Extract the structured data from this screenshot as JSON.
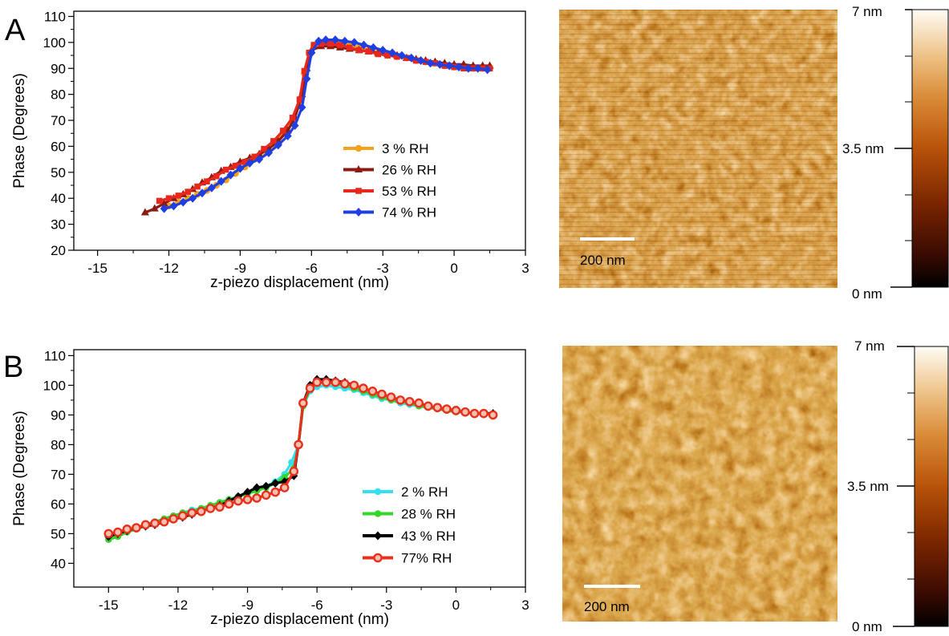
{
  "panels": [
    {
      "letter": "A",
      "chart_data": {
        "type": "line",
        "title": "",
        "xlabel": "z-piezo displacement (nm)",
        "ylabel": "Phase (Degrees)",
        "xlim": [
          -16,
          3
        ],
        "ylim": [
          20,
          112
        ],
        "xticks": [
          -15,
          -12,
          -9,
          -6,
          -3,
          0,
          3
        ],
        "yticks": [
          20,
          30,
          40,
          50,
          60,
          70,
          80,
          90,
          100,
          110
        ],
        "grid": false,
        "legend_position": "center-right",
        "series": [
          {
            "name": "3 % RH",
            "color": "#f7a21b",
            "marker": "circle",
            "x": [
              -12.0,
              -11.6,
              -11.2,
              -10.8,
              -10.4,
              -10.0,
              -9.6,
              -9.2,
              -8.8,
              -8.4,
              -8.0,
              -7.6,
              -7.2,
              -6.8,
              -6.5,
              -6.3,
              -6.1,
              -5.9,
              -5.6,
              -5.2,
              -4.8,
              -4.4,
              -4.0,
              -3.6,
              -3.2,
              -2.8,
              -2.4,
              -2.0,
              -1.6,
              -1.2,
              -0.8,
              -0.4,
              0.0,
              0.4,
              0.8,
              1.2,
              1.5
            ],
            "y": [
              37,
              38.5,
              40,
              41.5,
              43,
              45,
              47,
              49.5,
              52,
              55,
              58,
              61,
              65,
              69,
              76,
              88,
              96,
              99,
              100,
              100,
              99.5,
              99,
              98,
              97,
              96,
              95,
              94.5,
              94,
              93,
              92.5,
              92,
              91,
              90.5,
              90.5,
              90,
              90,
              90
            ]
          },
          {
            "name": "26 % RH",
            "color": "#8b1a12",
            "marker": "triangle",
            "x": [
              -13.0,
              -12.6,
              -12.2,
              -11.8,
              -11.4,
              -11.0,
              -10.6,
              -10.2,
              -9.8,
              -9.4,
              -9.0,
              -8.6,
              -8.2,
              -7.8,
              -7.4,
              -7.0,
              -6.7,
              -6.4,
              -6.2,
              -6.0,
              -5.6,
              -5.2,
              -4.8,
              -4.4,
              -4.0,
              -3.6,
              -3.2,
              -2.8,
              -2.4,
              -2.0,
              -1.6,
              -1.2,
              -0.8,
              -0.4,
              0.0,
              0.4,
              0.8,
              1.2,
              1.5
            ],
            "y": [
              34.5,
              36,
              38,
              40,
              41.5,
              43.5,
              46,
              48,
              50.5,
              52,
              54,
              55.5,
              57,
              59,
              62,
              66,
              71,
              80,
              90,
              97,
              98.5,
              98.5,
              98,
              97.5,
              97,
              96.5,
              96,
              95.5,
              95,
              94,
              93.5,
              93,
              92.5,
              92,
              91.5,
              91.5,
              91,
              91,
              91
            ]
          },
          {
            "name": "53 % RH",
            "color": "#e8281c",
            "marker": "square",
            "x": [
              -12.4,
              -12.0,
              -11.6,
              -11.2,
              -10.8,
              -10.4,
              -10.0,
              -9.6,
              -9.2,
              -8.8,
              -8.4,
              -8.0,
              -7.6,
              -7.2,
              -6.8,
              -6.5,
              -6.3,
              -6.1,
              -5.9,
              -5.6,
              -5.2,
              -4.8,
              -4.4,
              -4.0,
              -3.6,
              -3.2,
              -2.8,
              -2.4,
              -2.0,
              -1.6,
              -1.2,
              -0.8,
              -0.4,
              0.0,
              0.4,
              0.8,
              1.2,
              1.5
            ],
            "y": [
              39,
              40,
              41,
              42.5,
              44.5,
              46.5,
              48.5,
              51,
              52.5,
              54,
              56,
              59,
              62,
              66,
              71,
              78,
              89,
              96,
              99,
              99.5,
              99.5,
              99,
              98,
              97,
              96.5,
              95.5,
              95,
              94.5,
              94,
              93,
              92.5,
              92,
              91,
              90.5,
              90,
              90,
              90,
              90
            ]
          },
          {
            "name": "74 % RH",
            "color": "#1f3fe0",
            "marker": "diamond",
            "x": [
              -12.2,
              -11.8,
              -11.4,
              -11.0,
              -10.6,
              -10.2,
              -9.8,
              -9.4,
              -9.0,
              -8.6,
              -8.2,
              -7.8,
              -7.4,
              -7.0,
              -6.7,
              -6.4,
              -6.2,
              -6.0,
              -5.7,
              -5.4,
              -5.0,
              -4.6,
              -4.2,
              -3.8,
              -3.4,
              -3.0,
              -2.6,
              -2.2,
              -1.8,
              -1.4,
              -1.0,
              -0.6,
              -0.2,
              0.2,
              0.6,
              1.0,
              1.4
            ],
            "y": [
              36,
              37,
              38.5,
              40,
              42,
              44,
              46.5,
              49,
              51.5,
              53.5,
              55,
              57.5,
              60.5,
              64,
              68,
              75,
              86,
              96,
              100.5,
              101,
              101,
              100.5,
              100,
              99,
              98,
              97,
              96,
              95,
              94,
              93,
              92,
              91.5,
              91,
              90.5,
              90,
              90,
              89.5
            ]
          }
        ]
      },
      "image": {
        "scalebar_label": "200 nm",
        "colorbar_labels": [
          "7 nm",
          "3.5 nm",
          "0 nm"
        ],
        "colorbar_range": [
          0,
          7
        ],
        "colormap": [
          "#000000",
          "#3b0b02",
          "#7a2500",
          "#b8520a",
          "#d98a36",
          "#eec48a",
          "#fffcf5"
        ]
      }
    },
    {
      "letter": "B",
      "chart_data": {
        "type": "line",
        "title": "",
        "xlabel": "z-piezo displacement (nm)",
        "ylabel": "Phase (Degrees)",
        "xlim": [
          -16.5,
          3
        ],
        "ylim": [
          32,
          112
        ],
        "xticks": [
          -15,
          -12,
          -9,
          -6,
          -3,
          0,
          3
        ],
        "yticks": [
          40,
          50,
          60,
          70,
          80,
          90,
          100,
          110
        ],
        "grid": false,
        "legend_position": "bottom-right",
        "series": [
          {
            "name": "2 % RH",
            "color": "#33e0f0",
            "marker": "circle",
            "x": [
              -15.0,
              -14.6,
              -14.2,
              -13.8,
              -13.4,
              -13.0,
              -12.6,
              -12.2,
              -11.8,
              -11.4,
              -11.0,
              -10.6,
              -10.2,
              -9.8,
              -9.4,
              -9.0,
              -8.6,
              -8.2,
              -7.8,
              -7.4,
              -7.1,
              -6.8,
              -6.6,
              -6.3,
              -6.0,
              -5.6,
              -5.2,
              -4.8,
              -4.4,
              -4.0,
              -3.6,
              -3.2,
              -2.8,
              -2.4,
              -2.0,
              -1.6,
              -1.2,
              -0.8,
              -0.4,
              0.0,
              0.4,
              0.8,
              1.2,
              1.6
            ],
            "y": [
              49,
              50,
              51,
              52,
              53,
              54,
              55,
              56,
              57,
              58,
              58.5,
              59.5,
              60.5,
              61.5,
              62.5,
              63.5,
              65,
              66,
              67.5,
              70,
              74,
              80,
              93,
              98,
              99.5,
              100,
              99.5,
              99,
              98.5,
              97.5,
              96.5,
              95.5,
              95,
              94,
              93.5,
              93,
              92.5,
              92,
              91.5,
              91,
              91,
              90.5,
              90.5,
              90.5
            ]
          },
          {
            "name": "28 % RH",
            "color": "#35d62a",
            "marker": "circle",
            "x": [
              -15.0,
              -14.6,
              -14.2,
              -13.8,
              -13.4,
              -13.0,
              -12.6,
              -12.2,
              -11.8,
              -11.4,
              -11.0,
              -10.6,
              -10.2,
              -9.8,
              -9.4,
              -9.0,
              -8.6,
              -8.2,
              -7.8,
              -7.4,
              -7.0,
              -6.8,
              -6.6,
              -6.3,
              -6.0,
              -5.6,
              -5.2,
              -4.8,
              -4.4,
              -4.0,
              -3.6,
              -3.2,
              -2.8,
              -2.4,
              -2.0,
              -1.6,
              -1.2,
              -0.8,
              -0.4,
              0.0,
              0.4,
              0.8,
              1.2,
              1.6
            ],
            "y": [
              48,
              49,
              50.5,
              51.5,
              53,
              54,
              55,
              56,
              57,
              57.5,
              58.5,
              59.5,
              60.5,
              61.5,
              62.5,
              63.5,
              64.5,
              65.5,
              67,
              69,
              72,
              80,
              93,
              99,
              101,
              101,
              100.5,
              100,
              99,
              98,
              97,
              96,
              95,
              94.5,
              94,
              93,
              92.5,
              92,
              91.5,
              91,
              91,
              90.5,
              90.5,
              90.5
            ]
          },
          {
            "name": "43 % RH",
            "color": "#000000",
            "marker": "diamond",
            "x": [
              -15.0,
              -14.6,
              -14.2,
              -13.8,
              -13.4,
              -13.0,
              -12.6,
              -12.2,
              -11.8,
              -11.4,
              -11.0,
              -10.6,
              -10.2,
              -9.8,
              -9.4,
              -9.0,
              -8.6,
              -8.2,
              -7.8,
              -7.4,
              -7.0,
              -6.8,
              -6.6,
              -6.3,
              -6.0,
              -5.6,
              -5.2,
              -4.8,
              -4.4,
              -4.0,
              -3.6,
              -3.2,
              -2.8,
              -2.4,
              -2.0,
              -1.6,
              -1.2,
              -0.8,
              -0.4,
              0.0,
              0.4,
              0.8,
              1.2,
              1.6
            ],
            "y": [
              49,
              50,
              51,
              52,
              52.5,
              53,
              54,
              55,
              55.5,
              56.5,
              57.5,
              58.5,
              59.5,
              61,
              62.5,
              64,
              65.5,
              66,
              67,
              67.5,
              69.5,
              80,
              94,
              100,
              102,
              102,
              101.5,
              101,
              100,
              99,
              98,
              97,
              96,
              95,
              94.5,
              94,
              93,
              92.5,
              92,
              91.5,
              91,
              90.5,
              90.5,
              90.5
            ]
          },
          {
            "name": "77% RH",
            "color": "#e8301c",
            "marker": "open-circle",
            "x": [
              -15.0,
              -14.6,
              -14.2,
              -13.8,
              -13.4,
              -13.0,
              -12.6,
              -12.2,
              -11.8,
              -11.4,
              -11.0,
              -10.6,
              -10.2,
              -9.8,
              -9.4,
              -9.0,
              -8.6,
              -8.2,
              -7.8,
              -7.4,
              -7.0,
              -6.8,
              -6.6,
              -6.3,
              -6.0,
              -5.6,
              -5.2,
              -4.8,
              -4.4,
              -4.0,
              -3.6,
              -3.2,
              -2.8,
              -2.4,
              -2.0,
              -1.6,
              -1.2,
              -0.8,
              -0.4,
              0.0,
              0.4,
              0.8,
              1.2,
              1.6
            ],
            "y": [
              50,
              50.5,
              51.5,
              52,
              53,
              53.5,
              54,
              55,
              56,
              57,
              57.5,
              58.5,
              59,
              60,
              61,
              61.5,
              62,
              63,
              64,
              65.5,
              71,
              80,
              94,
              99,
              101,
              101,
              101,
              100.5,
              100,
              99,
              98,
              97,
              96,
              95,
              94.5,
              94,
              93,
              92.5,
              92,
              91.5,
              91,
              90.5,
              90.5,
              90
            ]
          }
        ]
      },
      "image": {
        "scalebar_label": "200 nm",
        "colorbar_labels": [
          "7 nm",
          "3.5 nm",
          "0 nm"
        ],
        "colorbar_range": [
          0,
          7
        ],
        "colormap": [
          "#000000",
          "#3b0b02",
          "#7a2500",
          "#b8520a",
          "#d98a36",
          "#eec48a",
          "#fffcf5"
        ]
      }
    }
  ]
}
